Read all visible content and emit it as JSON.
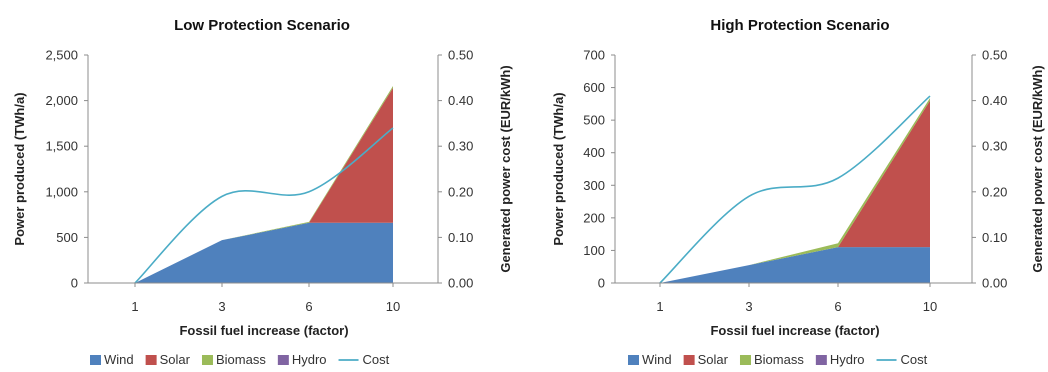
{
  "chart_data": [
    {
      "type": "area",
      "title": "Low Protection Scenario",
      "xlabel": "Fossil fuel increase (factor)",
      "ylabel": "Power produced (TWh/a)",
      "y2label": "Generated power cost (EUR/kWh)",
      "categories": [
        "1",
        "3",
        "6",
        "10"
      ],
      "ylim": [
        0,
        2500
      ],
      "yticks": [
        "0",
        "500",
        "1,000",
        "1,500",
        "2,000",
        "2,500"
      ],
      "y2lim": [
        0,
        0.5
      ],
      "y2ticks": [
        "0.00",
        "0.10",
        "0.20",
        "0.30",
        "0.40",
        "0.50"
      ],
      "series": [
        {
          "name": "Wind",
          "values": [
            0,
            470,
            660,
            660
          ]
        },
        {
          "name": "Solar",
          "values": [
            0,
            0,
            0,
            1480
          ]
        },
        {
          "name": "Biomass",
          "values": [
            0,
            0,
            10,
            20
          ]
        },
        {
          "name": "Hydro",
          "values": [
            0,
            0,
            0,
            0
          ]
        }
      ],
      "cost": {
        "name": "Cost",
        "values": [
          0.0,
          0.19,
          0.2,
          0.34
        ]
      },
      "legend_position": "bottom",
      "grid": false
    },
    {
      "type": "area",
      "title": "High Protection Scenario",
      "xlabel": "Fossil fuel increase (factor)",
      "ylabel": "Power produced (TWh/a)",
      "y2label": "Generated power cost (EUR/kWh)",
      "categories": [
        "1",
        "3",
        "6",
        "10"
      ],
      "ylim": [
        0,
        700
      ],
      "yticks": [
        "0",
        "100",
        "200",
        "300",
        "400",
        "500",
        "600",
        "700"
      ],
      "y2lim": [
        0,
        0.5
      ],
      "y2ticks": [
        "0.00",
        "0.10",
        "0.20",
        "0.30",
        "0.40",
        "0.50"
      ],
      "series": [
        {
          "name": "Wind",
          "values": [
            0,
            55,
            110,
            110
          ]
        },
        {
          "name": "Solar",
          "values": [
            0,
            0,
            0,
            450
          ]
        },
        {
          "name": "Biomass",
          "values": [
            0,
            0,
            12,
            8
          ]
        },
        {
          "name": "Hydro",
          "values": [
            0,
            0,
            0,
            0
          ]
        }
      ],
      "cost": {
        "name": "Cost",
        "values": [
          0.0,
          0.19,
          0.23,
          0.41
        ]
      },
      "legend_position": "bottom",
      "grid": false
    }
  ],
  "colors": {
    "Wind": "#4f81bd",
    "Solar": "#c0504d",
    "Biomass": "#9bbb59",
    "Hydro": "#8064a2",
    "Cost": "#4bacc6"
  }
}
